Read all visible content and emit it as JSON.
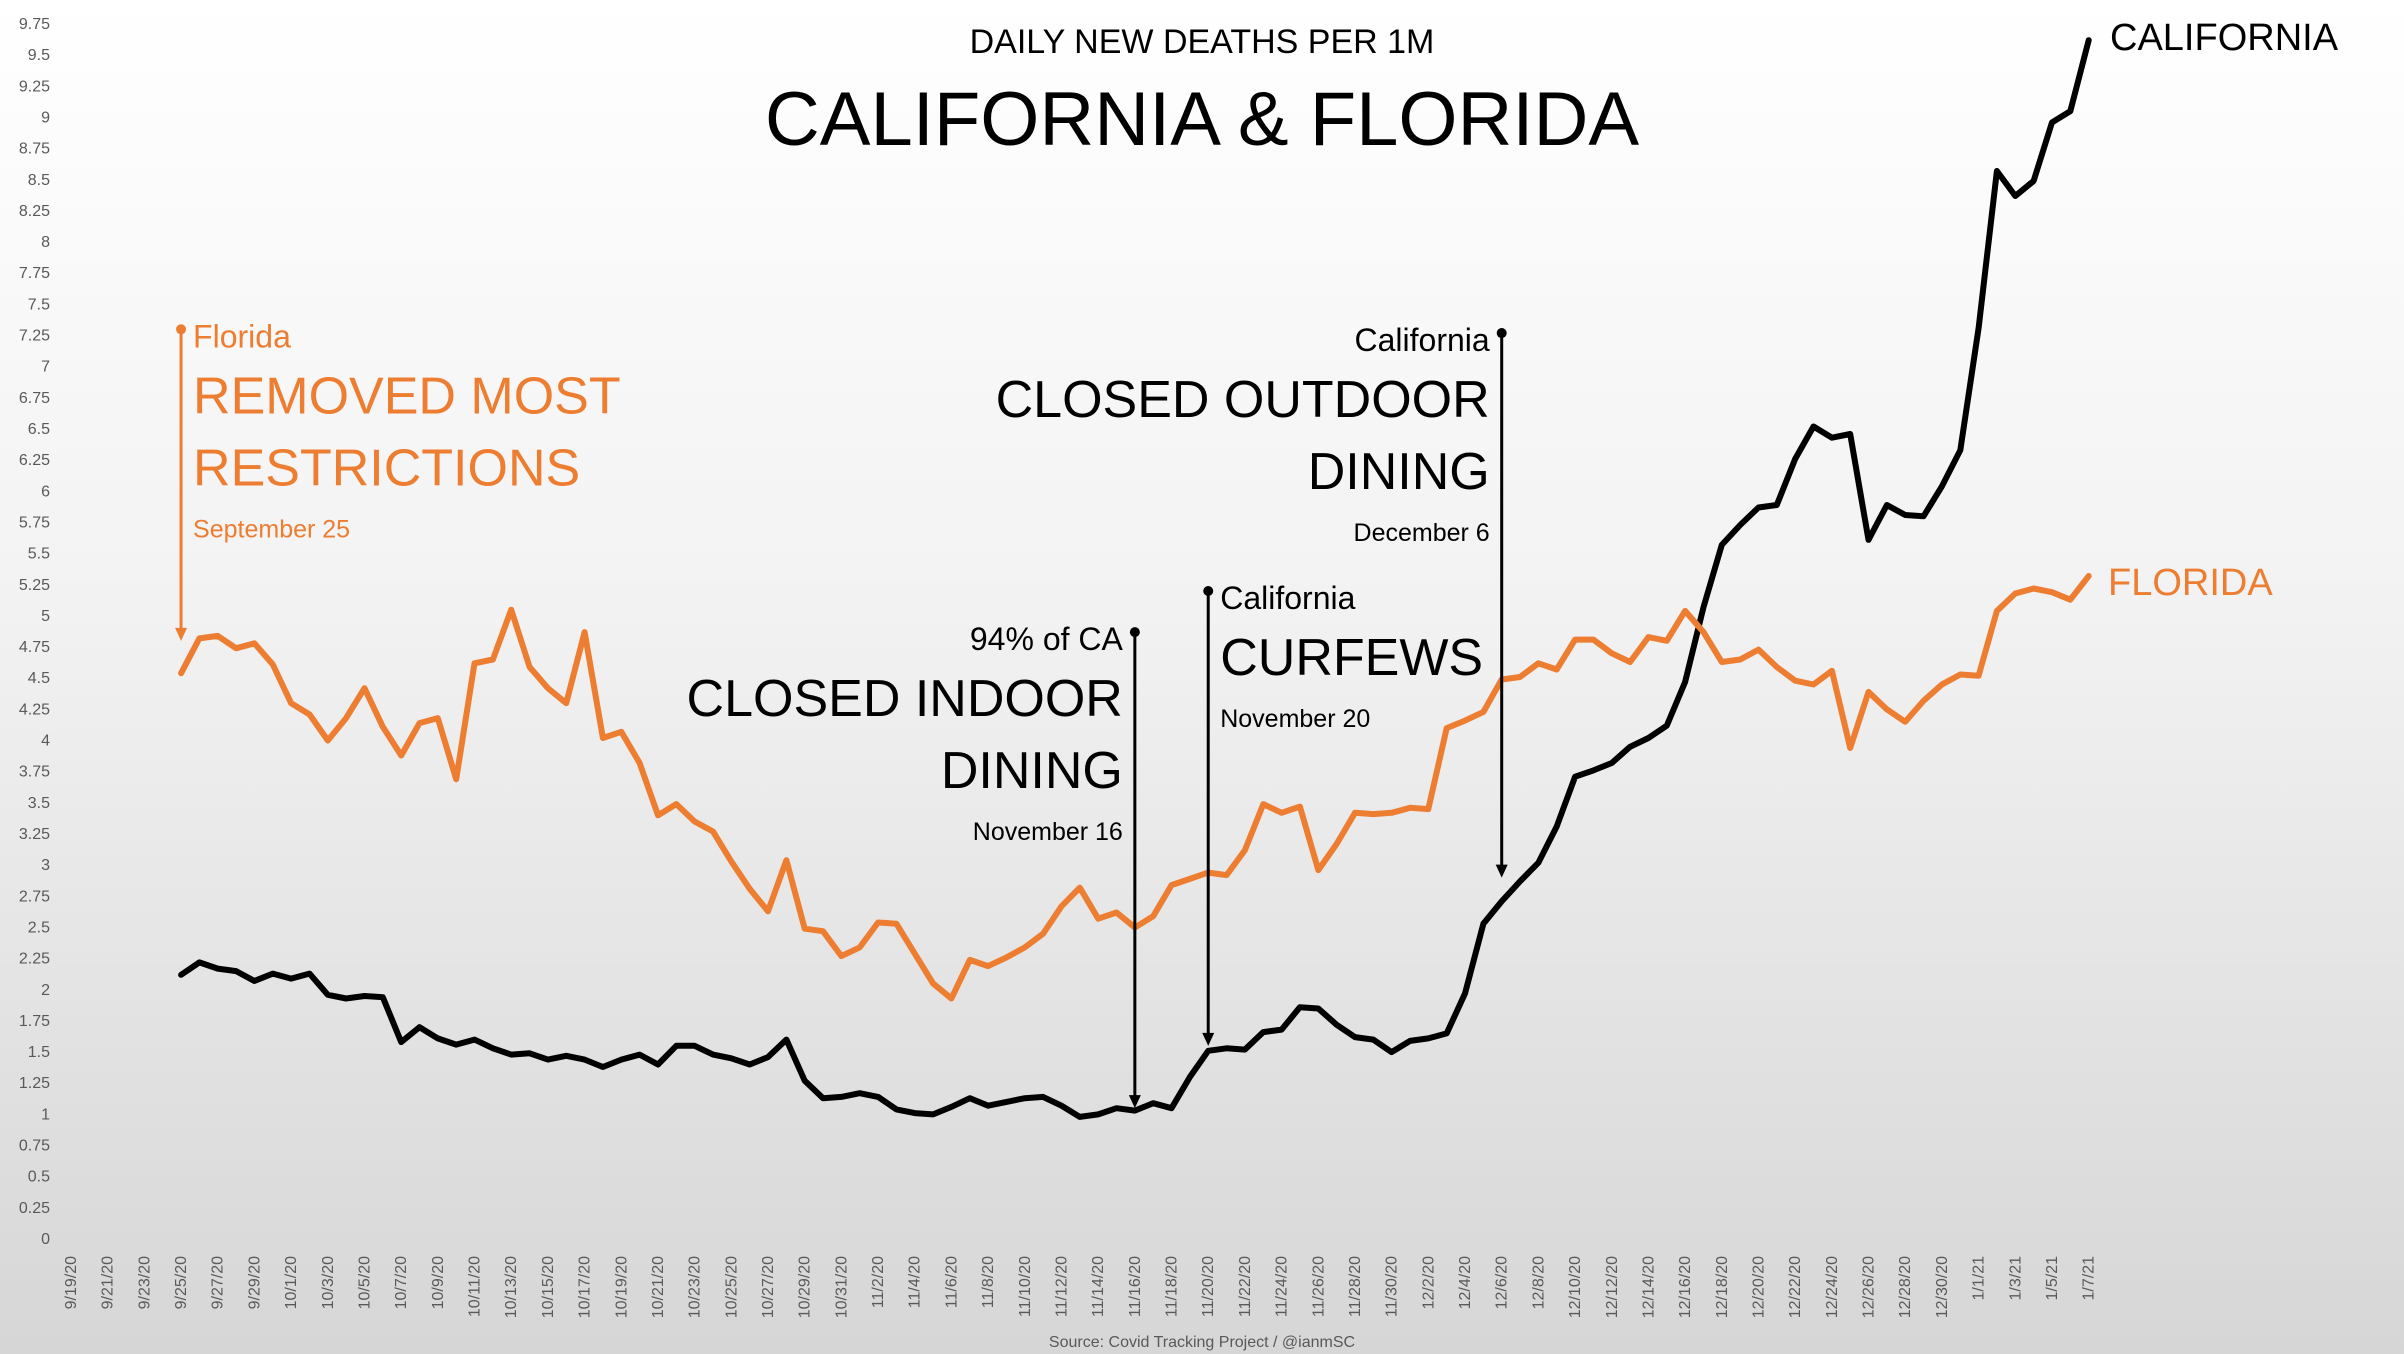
{
  "chart_data": {
    "type": "line",
    "title": "CALIFORNIA & FLORIDA",
    "subtitle": "DAILY NEW DEATHS PER 1M",
    "source": "Source: Covid Tracking Project / @ianmSC",
    "ylim": [
      0,
      9.75
    ],
    "ytick_step": 0.25,
    "grid": false,
    "x_start": "2020-09-19",
    "x_end": "2021-01-08",
    "x_tick_labels": [
      "9/19/20",
      "9/21/20",
      "9/23/20",
      "9/25/20",
      "9/27/20",
      "9/29/20",
      "10/1/20",
      "10/3/20",
      "10/5/20",
      "10/7/20",
      "10/9/20",
      "10/11/20",
      "10/13/20",
      "10/15/20",
      "10/17/20",
      "10/19/20",
      "10/21/20",
      "10/23/20",
      "10/25/20",
      "10/27/20",
      "10/29/20",
      "10/31/20",
      "11/2/20",
      "11/4/20",
      "11/6/20",
      "11/8/20",
      "11/10/20",
      "11/12/20",
      "11/14/20",
      "11/16/20",
      "11/18/20",
      "11/20/20",
      "11/22/20",
      "11/24/20",
      "11/26/20",
      "11/28/20",
      "11/30/20",
      "12/2/20",
      "12/4/20",
      "12/6/20",
      "12/8/20",
      "12/10/20",
      "12/12/20",
      "12/14/20",
      "12/16/20",
      "12/18/20",
      "12/20/20",
      "12/22/20",
      "12/24/20",
      "12/26/20",
      "12/28/20",
      "12/30/20",
      "1/1/21",
      "1/3/21",
      "1/5/21",
      "1/7/21"
    ],
    "series_start": "2020-09-25",
    "series": [
      {
        "name": "CALIFORNIA",
        "color": "#000000",
        "values": [
          2.12,
          2.22,
          2.17,
          2.15,
          2.07,
          2.13,
          2.09,
          2.13,
          1.96,
          1.93,
          1.95,
          1.94,
          1.58,
          1.7,
          1.61,
          1.56,
          1.6,
          1.53,
          1.48,
          1.49,
          1.44,
          1.47,
          1.44,
          1.38,
          1.44,
          1.48,
          1.4,
          1.55,
          1.55,
          1.48,
          1.45,
          1.4,
          1.46,
          1.6,
          1.27,
          1.13,
          1.14,
          1.17,
          1.14,
          1.04,
          1.01,
          1.0,
          1.06,
          1.13,
          1.07,
          1.1,
          1.13,
          1.14,
          1.07,
          0.98,
          1.0,
          1.05,
          1.03,
          1.09,
          1.05,
          1.3,
          1.51,
          1.53,
          1.52,
          1.66,
          1.68,
          1.86,
          1.85,
          1.72,
          1.62,
          1.6,
          1.5,
          1.59,
          1.61,
          1.65,
          1.97,
          2.53,
          2.71,
          2.87,
          3.02,
          3.31,
          3.71,
          3.76,
          3.82,
          3.95,
          4.02,
          4.12,
          4.47,
          5.07,
          5.57,
          5.73,
          5.87,
          5.89,
          6.26,
          6.52,
          6.43,
          6.46,
          5.61,
          5.89,
          5.81,
          5.8,
          6.04,
          6.33,
          7.31,
          8.57,
          8.37,
          8.49,
          8.96,
          9.05,
          9.62
        ]
      },
      {
        "name": "FLORIDA",
        "color": "#ED7D31",
        "values": [
          4.54,
          4.82,
          4.84,
          4.74,
          4.78,
          4.61,
          4.3,
          4.21,
          4.0,
          4.18,
          4.42,
          4.11,
          3.88,
          4.14,
          4.18,
          3.69,
          4.62,
          4.65,
          5.05,
          4.59,
          4.42,
          4.3,
          4.87,
          4.02,
          4.07,
          3.82,
          3.4,
          3.49,
          3.35,
          3.27,
          3.03,
          2.81,
          2.63,
          3.04,
          2.49,
          2.47,
          2.27,
          2.34,
          2.54,
          2.53,
          2.29,
          2.05,
          1.93,
          2.24,
          2.19,
          2.26,
          2.34,
          2.45,
          2.67,
          2.82,
          2.57,
          2.62,
          2.5,
          2.59,
          2.84,
          2.89,
          2.94,
          2.92,
          3.12,
          3.49,
          3.42,
          3.47,
          2.96,
          3.17,
          3.42,
          3.41,
          3.42,
          3.46,
          3.45,
          4.1,
          4.16,
          4.23,
          4.49,
          4.51,
          4.62,
          4.57,
          4.81,
          4.81,
          4.7,
          4.63,
          4.83,
          4.8,
          5.04,
          4.87,
          4.63,
          4.65,
          4.73,
          4.59,
          4.48,
          4.45,
          4.56,
          3.94,
          4.39,
          4.25,
          4.15,
          4.32,
          4.45,
          4.53,
          4.52,
          5.04,
          5.18,
          5.22,
          5.19,
          5.13,
          5.32
        ]
      }
    ],
    "series_labels": [
      "CALIFORNIA",
      "FLORIDA"
    ],
    "annotations": [
      {
        "date": "2020-09-25",
        "y_top": 7.3,
        "y_bottom": 4.8,
        "color": "#ED7D31",
        "state": "Florida",
        "headline": [
          "REMOVED MOST",
          "RESTRICTIONS"
        ],
        "date_label": "September 25",
        "align": "left"
      },
      {
        "date": "2020-11-16",
        "y_top": 4.87,
        "y_bottom": 1.05,
        "color": "#000000",
        "state": "94% of CA",
        "headline": [
          "CLOSED INDOOR",
          "DINING"
        ],
        "date_label": "November 16",
        "align": "right"
      },
      {
        "date": "2020-11-20",
        "y_top": 5.2,
        "y_bottom": 1.55,
        "color": "#000000",
        "state": "California",
        "headline": [
          "CURFEWS"
        ],
        "date_label": "November 20",
        "align": "left"
      },
      {
        "date": "2020-12-06",
        "y_top": 7.27,
        "y_bottom": 2.9,
        "color": "#000000",
        "state": "California",
        "headline": [
          "CLOSED OUTDOOR",
          "DINING"
        ],
        "date_label": "December 6",
        "align": "right"
      }
    ]
  }
}
